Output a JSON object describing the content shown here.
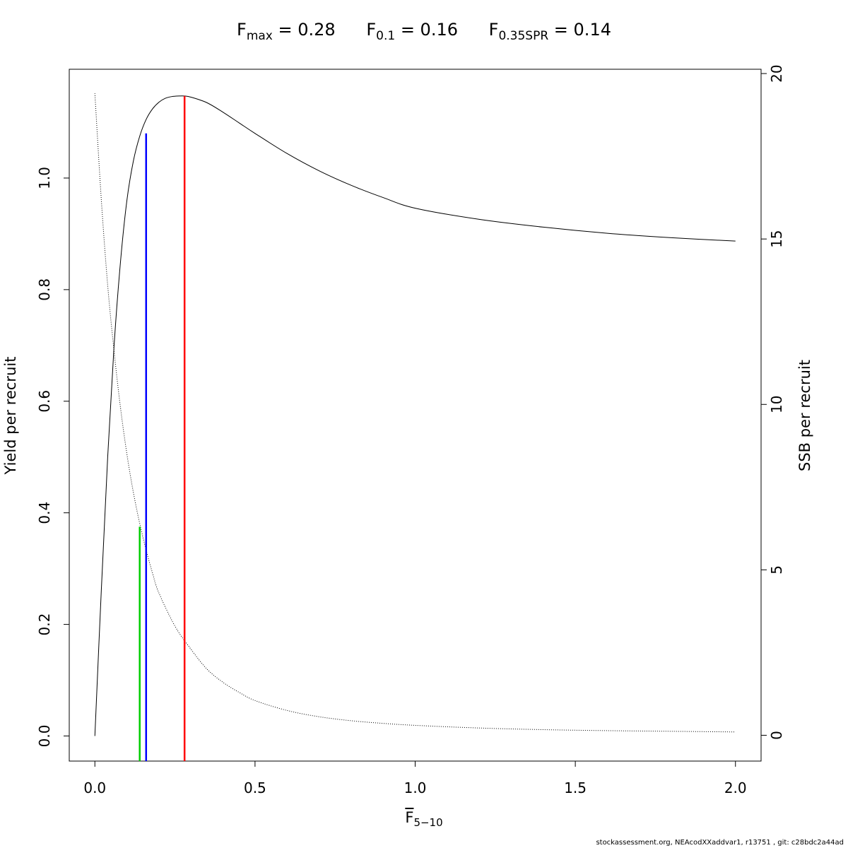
{
  "title": {
    "items": [
      {
        "symbol": "F",
        "sub": "max",
        "text": " = 0.28"
      },
      {
        "symbol": "F",
        "sub": "0.1",
        "text": " = 0.16"
      },
      {
        "symbol": "F",
        "sub": "0.35SPR",
        "text": " = 0.14"
      }
    ]
  },
  "footer": "stockassessment.org, NEAcodXXaddvar1, r13751 , git: c28bdc2a44ad",
  "chart_data": {
    "type": "line",
    "xlabel": {
      "symbol": "F",
      "sub": "5−10"
    },
    "ylabel_left": "Yield per recruit",
    "ylabel_right": "SSB per recruit",
    "xlim": [
      -0.08,
      2.08
    ],
    "ylim_left": [
      -0.045,
      1.195
    ],
    "ylim_right": [
      -0.78,
      20.13
    ],
    "x_ticks": [
      "0.0",
      "0.5",
      "1.0",
      "1.5",
      "2.0"
    ],
    "y_ticks_left": [
      "0.0",
      "0.2",
      "0.4",
      "0.6",
      "0.8",
      "1.0"
    ],
    "y_ticks_right": [
      "0",
      "5",
      "10",
      "15",
      "20"
    ],
    "grid": false,
    "series": [
      {
        "style": "solid",
        "color": "#000000",
        "axis": "left",
        "x": [
          0,
          0.02,
          0.04,
          0.06,
          0.08,
          0.1,
          0.12,
          0.14,
          0.16,
          0.18,
          0.2,
          0.22,
          0.24,
          0.26,
          0.28,
          0.3,
          0.35,
          0.4,
          0.45,
          0.5,
          0.6,
          0.7,
          0.8,
          0.9,
          1.0,
          1.2,
          1.4,
          1.6,
          1.8,
          2.0
        ],
        "y": [
          0,
          0.26,
          0.5,
          0.7,
          0.85,
          0.96,
          1.03,
          1.075,
          1.105,
          1.124,
          1.136,
          1.143,
          1.146,
          1.147,
          1.147,
          1.145,
          1.135,
          1.118,
          1.099,
          1.08,
          1.044,
          1.013,
          0.987,
          0.965,
          0.946,
          0.926,
          0.912,
          0.901,
          0.893,
          0.887
        ]
      },
      {
        "style": "dotted",
        "color": "#000000",
        "axis": "right",
        "x": [
          0,
          0.02,
          0.04,
          0.06,
          0.08,
          0.1,
          0.12,
          0.14,
          0.16,
          0.18,
          0.2,
          0.25,
          0.3,
          0.35,
          0.4,
          0.45,
          0.5,
          0.6,
          0.7,
          0.8,
          0.9,
          1.0,
          1.2,
          1.4,
          1.6,
          1.8,
          2.0
        ],
        "y": [
          19.4,
          16.2,
          13.6,
          11.6,
          9.9,
          8.5,
          7.35,
          6.4,
          5.6,
          4.9,
          4.3,
          3.3,
          2.6,
          2.0,
          1.6,
          1.3,
          1.05,
          0.75,
          0.56,
          0.44,
          0.36,
          0.3,
          0.22,
          0.17,
          0.14,
          0.12,
          0.1
        ]
      }
    ],
    "reference_lines": [
      {
        "name": "F0.35SPR",
        "x": 0.14,
        "y_top": 0.375,
        "color": "#00cc00"
      },
      {
        "name": "F0.1",
        "x": 0.16,
        "y_top": 1.08,
        "color": "#0000ff"
      },
      {
        "name": "Fmax",
        "x": 0.28,
        "y_top": 1.147,
        "color": "#ff0000"
      }
    ]
  }
}
